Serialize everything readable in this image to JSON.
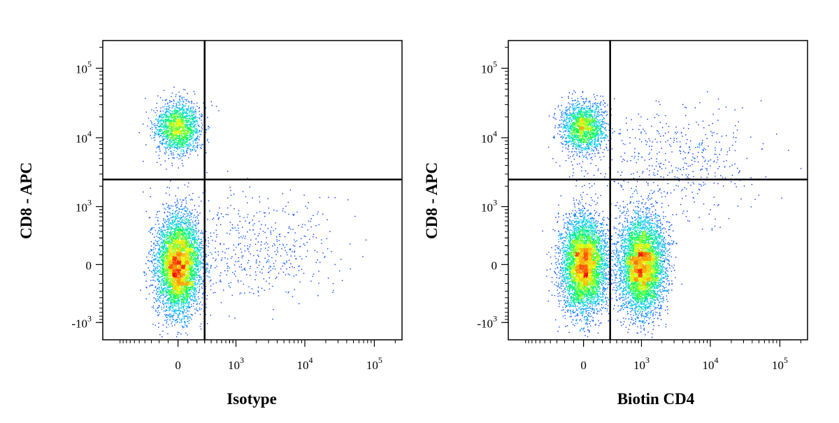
{
  "colors": {
    "density_low": "#0000ff",
    "density_mid": "#00ffff",
    "density_mid2": "#00ff00",
    "density_high": "#ffff00",
    "density_peak": "#ff0000",
    "frame": "#000000",
    "gate_line": "#000000"
  },
  "chart_data": [
    {
      "type": "scatter",
      "xlabel": "Isotype",
      "ylabel": "CD8 - APC",
      "x_scale": "biexponential",
      "y_scale": "biexponential",
      "x_ticks": [
        "0",
        "10^3",
        "10^4",
        "10^5"
      ],
      "y_ticks": [
        "10^5",
        "10^4",
        "10^3",
        "0",
        "-10^3"
      ],
      "quadrant_gate": {
        "x": 300,
        "y": 2500
      },
      "populations": [
        {
          "x_center": 0,
          "y_center": 14000,
          "relative_density": "medium",
          "peak_color": "cyan"
        },
        {
          "x_center": 0,
          "y_center": 0,
          "relative_density": "high",
          "peak_color": "red"
        },
        {
          "x_center": 2000,
          "y_center": 200,
          "relative_density": "sparse",
          "peak_color": "blue"
        }
      ]
    },
    {
      "type": "scatter",
      "xlabel": "Biotin CD4",
      "ylabel": "CD8 - APC",
      "x_scale": "biexponential",
      "y_scale": "biexponential",
      "x_ticks": [
        "0",
        "10^3",
        "10^4",
        "10^5"
      ],
      "y_ticks": [
        "10^5",
        "10^4",
        "10^3",
        "0",
        "-10^3"
      ],
      "quadrant_gate": {
        "x": 300,
        "y": 2500
      },
      "populations": [
        {
          "x_center": 0,
          "y_center": 14000,
          "relative_density": "medium",
          "peak_color": "yellow"
        },
        {
          "x_center": 0,
          "y_center": 0,
          "relative_density": "high",
          "peak_color": "red"
        },
        {
          "x_center": 1000,
          "y_center": 0,
          "relative_density": "high",
          "peak_color": "orange"
        },
        {
          "x_center": 3000,
          "y_center": 5000,
          "relative_density": "sparse",
          "peak_color": "blue"
        }
      ]
    }
  ]
}
